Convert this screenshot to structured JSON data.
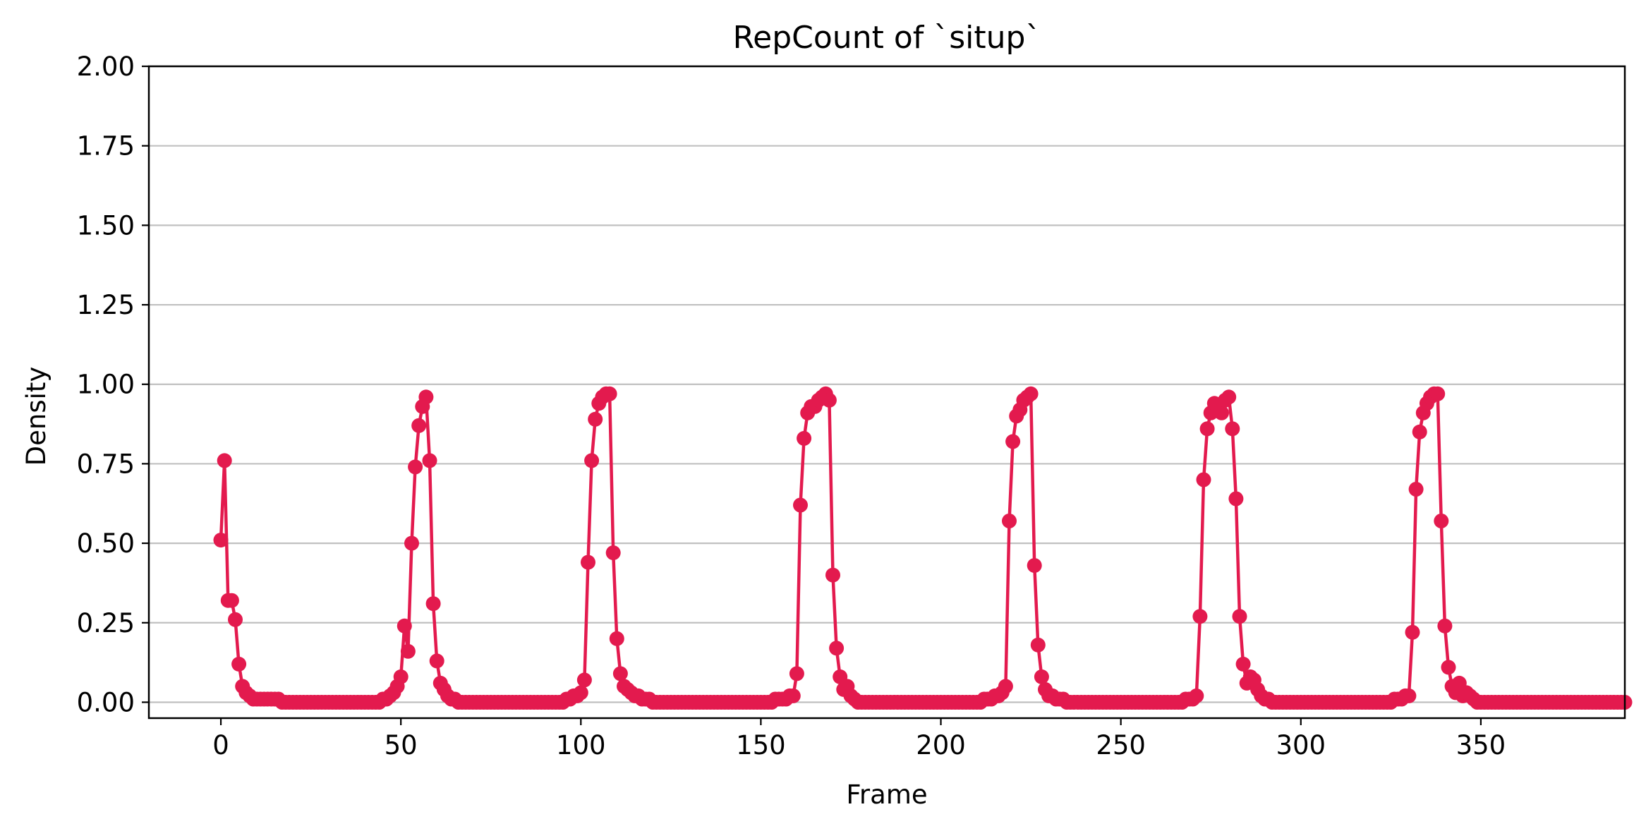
{
  "chart_data": {
    "type": "line",
    "title": "RepCount of `situp`",
    "xlabel": "Frame",
    "ylabel": "Density",
    "xlim": [
      -20,
      390
    ],
    "ylim": [
      -0.05,
      2.0
    ],
    "x_ticks": [
      0,
      50,
      100,
      150,
      200,
      250,
      300,
      350
    ],
    "x_tick_labels": [
      "0",
      "50",
      "100",
      "150",
      "200",
      "250",
      "300",
      "350"
    ],
    "y_ticks": [
      0,
      0.25,
      0.5,
      0.75,
      1.0,
      1.25,
      1.5,
      1.75,
      2.0
    ],
    "y_tick_labels": [
      "0.00",
      "0.25",
      "0.50",
      "0.75",
      "1.00",
      "1.25",
      "1.50",
      "1.75",
      "2.00"
    ],
    "grid": "horizontal",
    "line_color": "#e31a4e",
    "grid_color": "#c0c0c0",
    "markers": true,
    "series": [
      {
        "x_start": 0,
        "x_step": 1,
        "values": [
          0.51,
          0.76,
          0.32,
          0.32,
          0.26,
          0.12,
          0.05,
          0.03,
          0.02,
          0.01,
          0.01,
          0.01,
          0.01,
          0.01,
          0.01,
          0.01,
          0.01,
          0.0,
          0.0,
          0.0,
          0.0,
          0.0,
          0.0,
          0.0,
          0.0,
          0.0,
          0.0,
          0.0,
          0.0,
          0.0,
          0.0,
          0.0,
          0.0,
          0.0,
          0.0,
          0.0,
          0.0,
          0.0,
          0.0,
          0.0,
          0.0,
          0.0,
          0.0,
          0.0,
          0.0,
          0.01,
          0.01,
          0.02,
          0.03,
          0.05,
          0.08,
          0.24,
          0.16,
          0.5,
          0.74,
          0.87,
          0.93,
          0.96,
          0.76,
          0.31,
          0.13,
          0.06,
          0.04,
          0.02,
          0.01,
          0.01,
          0.0,
          0.0,
          0.0,
          0.0,
          0.0,
          0.0,
          0.0,
          0.0,
          0.0,
          0.0,
          0.0,
          0.0,
          0.0,
          0.0,
          0.0,
          0.0,
          0.0,
          0.0,
          0.0,
          0.0,
          0.0,
          0.0,
          0.0,
          0.0,
          0.0,
          0.0,
          0.0,
          0.0,
          0.0,
          0.0,
          0.01,
          0.01,
          0.02,
          0.02,
          0.03,
          0.07,
          0.44,
          0.76,
          0.89,
          0.94,
          0.96,
          0.97,
          0.97,
          0.47,
          0.2,
          0.09,
          0.05,
          0.04,
          0.03,
          0.02,
          0.02,
          0.01,
          0.01,
          0.01,
          0.0,
          0.0,
          0.0,
          0.0,
          0.0,
          0.0,
          0.0,
          0.0,
          0.0,
          0.0,
          0.0,
          0.0,
          0.0,
          0.0,
          0.0,
          0.0,
          0.0,
          0.0,
          0.0,
          0.0,
          0.0,
          0.0,
          0.0,
          0.0,
          0.0,
          0.0,
          0.0,
          0.0,
          0.0,
          0.0,
          0.0,
          0.0,
          0.0,
          0.0,
          0.01,
          0.01,
          0.01,
          0.01,
          0.02,
          0.02,
          0.09,
          0.62,
          0.83,
          0.91,
          0.93,
          0.93,
          0.95,
          0.96,
          0.97,
          0.95,
          0.4,
          0.17,
          0.08,
          0.04,
          0.05,
          0.02,
          0.01,
          0.0,
          0.0,
          0.0,
          0.0,
          0.0,
          0.0,
          0.0,
          0.0,
          0.0,
          0.0,
          0.0,
          0.0,
          0.0,
          0.0,
          0.0,
          0.0,
          0.0,
          0.0,
          0.0,
          0.0,
          0.0,
          0.0,
          0.0,
          0.0,
          0.0,
          0.0,
          0.0,
          0.0,
          0.0,
          0.0,
          0.0,
          0.0,
          0.0,
          0.0,
          0.0,
          0.01,
          0.01,
          0.01,
          0.02,
          0.02,
          0.03,
          0.05,
          0.57,
          0.82,
          0.9,
          0.92,
          0.95,
          0.96,
          0.97,
          0.43,
          0.18,
          0.08,
          0.04,
          0.02,
          0.02,
          0.01,
          0.01,
          0.01,
          0.0,
          0.0,
          0.0,
          0.0,
          0.0,
          0.0,
          0.0,
          0.0,
          0.0,
          0.0,
          0.0,
          0.0,
          0.0,
          0.0,
          0.0,
          0.0,
          0.0,
          0.0,
          0.0,
          0.0,
          0.0,
          0.0,
          0.0,
          0.0,
          0.0,
          0.0,
          0.0,
          0.0,
          0.0,
          0.0,
          0.0,
          0.0,
          0.0,
          0.01,
          0.01,
          0.01,
          0.02,
          0.27,
          0.7,
          0.86,
          0.91,
          0.94,
          0.92,
          0.91,
          0.95,
          0.96,
          0.86,
          0.64,
          0.27,
          0.12,
          0.06,
          0.08,
          0.07,
          0.04,
          0.02,
          0.01,
          0.01,
          0.0,
          0.0,
          0.0,
          0.0,
          0.0,
          0.0,
          0.0,
          0.0,
          0.0,
          0.0,
          0.0,
          0.0,
          0.0,
          0.0,
          0.0,
          0.0,
          0.0,
          0.0,
          0.0,
          0.0,
          0.0,
          0.0,
          0.0,
          0.0,
          0.0,
          0.0,
          0.0,
          0.0,
          0.0,
          0.0,
          0.0,
          0.0,
          0.0,
          0.0,
          0.01,
          0.01,
          0.01,
          0.02,
          0.02,
          0.22,
          0.67,
          0.85,
          0.91,
          0.94,
          0.96,
          0.97,
          0.97,
          0.57,
          0.24,
          0.11,
          0.05,
          0.03,
          0.06,
          0.02,
          0.03,
          0.02,
          0.01,
          0.0,
          0.0,
          0.0,
          0.0,
          0.0,
          0.0,
          0.0,
          0.0,
          0.0,
          0.0,
          0.0,
          0.0,
          0.0,
          0.0,
          0.0,
          0.0,
          0.0,
          0.0,
          0.0,
          0.0,
          0.0,
          0.0,
          0.0,
          0.0,
          0.0,
          0.0,
          0.0,
          0.0,
          0.0,
          0.0,
          0.0,
          0.0,
          0.0,
          0.0,
          0.0,
          0.0,
          0.0,
          0.0,
          0.0,
          0.0,
          0.0,
          0.0,
          0.0
        ]
      }
    ]
  }
}
